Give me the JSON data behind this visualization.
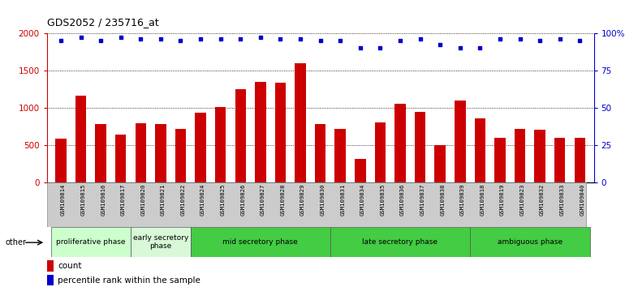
{
  "title": "GDS2052 / 235716_at",
  "samples": [
    "GSM109814",
    "GSM109815",
    "GSM109816",
    "GSM109817",
    "GSM109820",
    "GSM109821",
    "GSM109822",
    "GSM109824",
    "GSM109825",
    "GSM109826",
    "GSM109827",
    "GSM109828",
    "GSM109829",
    "GSM109830",
    "GSM109831",
    "GSM109834",
    "GSM109835",
    "GSM109836",
    "GSM109837",
    "GSM109838",
    "GSM109839",
    "GSM109818",
    "GSM109819",
    "GSM109823",
    "GSM109832",
    "GSM109833",
    "GSM109840"
  ],
  "counts": [
    580,
    1160,
    775,
    635,
    790,
    775,
    720,
    930,
    1010,
    1250,
    1340,
    1330,
    1600,
    775,
    710,
    310,
    805,
    1050,
    940,
    500,
    1090,
    855,
    595,
    715,
    700,
    595,
    595
  ],
  "percentile_ranks": [
    95,
    97,
    95,
    97,
    96,
    96,
    95,
    96,
    96,
    96,
    97,
    96,
    96,
    95,
    95,
    90,
    90,
    95,
    96,
    92,
    90,
    90,
    96,
    96,
    95,
    96,
    95
  ],
  "bar_color": "#cc0000",
  "dot_color": "#0000cc",
  "left_ylim": [
    0,
    2000
  ],
  "right_ylim": [
    0,
    100
  ],
  "left_yticks": [
    0,
    500,
    1000,
    1500,
    2000
  ],
  "right_yticks": [
    0,
    25,
    50,
    75,
    100
  ],
  "right_yticklabels": [
    "0",
    "25",
    "50",
    "75",
    "100%"
  ],
  "phases": [
    {
      "label": "proliferative phase",
      "start": 0,
      "end": 4,
      "color": "#ccffcc"
    },
    {
      "label": "early secretory\nphase",
      "start": 4,
      "end": 7,
      "color": "#d8f8d8"
    },
    {
      "label": "mid secretory phase",
      "start": 7,
      "end": 14,
      "color": "#44cc44"
    },
    {
      "label": "late secretory phase",
      "start": 14,
      "end": 21,
      "color": "#44cc44"
    },
    {
      "label": "ambiguous phase",
      "start": 21,
      "end": 27,
      "color": "#44cc44"
    }
  ],
  "legend_count_label": "count",
  "legend_pct_label": "percentile rank within the sample",
  "other_label": "other"
}
